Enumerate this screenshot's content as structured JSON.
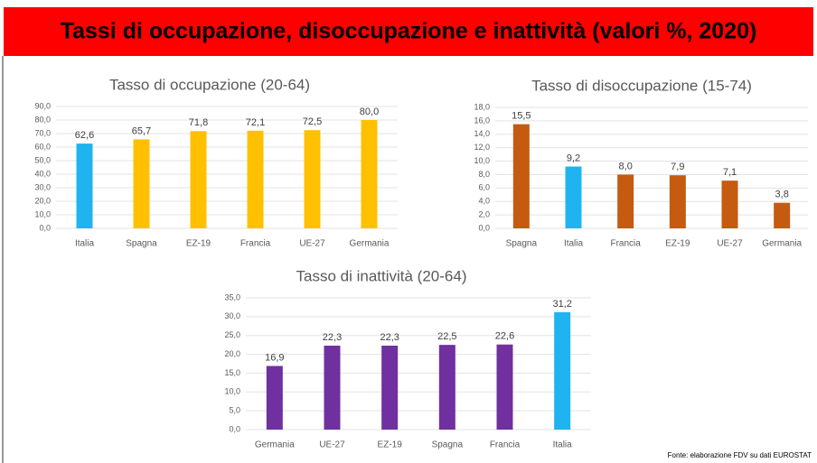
{
  "title": "Tassi di occupazione, disoccupazione e inattività (valori %, 2020)",
  "source": "Fonte: elaborazione FDV su dati EUROSTAT",
  "chart_data": [
    {
      "type": "bar",
      "title": "Tasso di occupazione (20-64)",
      "categories": [
        "Italia",
        "Spagna",
        "EZ-19",
        "Francia",
        "UE-27",
        "Germania"
      ],
      "values": [
        62.6,
        65.7,
        71.8,
        72.1,
        72.5,
        80.0
      ],
      "value_labels": [
        "62,6",
        "65,7",
        "71,8",
        "72,1",
        "72,5",
        "80,0"
      ],
      "colors": [
        "#1fb4ef",
        "#ffc000",
        "#ffc000",
        "#ffc000",
        "#ffc000",
        "#ffc000"
      ],
      "ylim": [
        0,
        90
      ],
      "yticks": [
        {
          "value": 0,
          "label": "0,0"
        },
        {
          "value": 10,
          "label": "10,0"
        },
        {
          "value": 20,
          "label": "20,0"
        },
        {
          "value": 30,
          "label": "30,0"
        },
        {
          "value": 40,
          "label": "40,0"
        },
        {
          "value": 50,
          "label": "50,0"
        },
        {
          "value": 60,
          "label": "60,0"
        },
        {
          "value": 70,
          "label": "70,0"
        },
        {
          "value": 80,
          "label": "80,0"
        },
        {
          "value": 90,
          "label": "90,0"
        }
      ],
      "grid": true
    },
    {
      "type": "bar",
      "title": "Tasso di disoccupazione (15-74)",
      "categories": [
        "Spagna",
        "Italia",
        "Francia",
        "EZ-19",
        "UE-27",
        "Germania"
      ],
      "values": [
        15.5,
        9.2,
        8.0,
        7.9,
        7.1,
        3.8
      ],
      "value_labels": [
        "15,5",
        "9,2",
        "8,0",
        "7,9",
        "7,1",
        "3,8"
      ],
      "colors": [
        "#c55a11",
        "#1fb4ef",
        "#c55a11",
        "#c55a11",
        "#c55a11",
        "#c55a11"
      ],
      "ylim": [
        0,
        18
      ],
      "yticks": [
        {
          "value": 0,
          "label": "0,0"
        },
        {
          "value": 2,
          "label": "2,0"
        },
        {
          "value": 4,
          "label": "4,0"
        },
        {
          "value": 6,
          "label": "6,0"
        },
        {
          "value": 8,
          "label": "8,0"
        },
        {
          "value": 10,
          "label": "10,0"
        },
        {
          "value": 12,
          "label": "12,0"
        },
        {
          "value": 14,
          "label": "14,0"
        },
        {
          "value": 16,
          "label": "16,0"
        },
        {
          "value": 18,
          "label": "18,0"
        }
      ],
      "grid": true
    },
    {
      "type": "bar",
      "title": "Tasso di inattività (20-64)",
      "categories": [
        "Germania",
        "UE-27",
        "EZ-19",
        "Spagna",
        "Francia",
        "Italia"
      ],
      "values": [
        16.9,
        22.3,
        22.3,
        22.5,
        22.6,
        31.2
      ],
      "value_labels": [
        "16,9",
        "22,3",
        "22,3",
        "22,5",
        "22,6",
        "31,2"
      ],
      "colors": [
        "#7030a0",
        "#7030a0",
        "#7030a0",
        "#7030a0",
        "#7030a0",
        "#1fb4ef"
      ],
      "ylim": [
        0,
        35
      ],
      "yticks": [
        {
          "value": 0,
          "label": "0,0"
        },
        {
          "value": 5,
          "label": "5,0"
        },
        {
          "value": 10,
          "label": "10,0"
        },
        {
          "value": 15,
          "label": "15,0"
        },
        {
          "value": 20,
          "label": "20,0"
        },
        {
          "value": 25,
          "label": "25,0"
        },
        {
          "value": 30,
          "label": "30,0"
        },
        {
          "value": 35,
          "label": "35,0"
        }
      ],
      "grid": true
    }
  ]
}
